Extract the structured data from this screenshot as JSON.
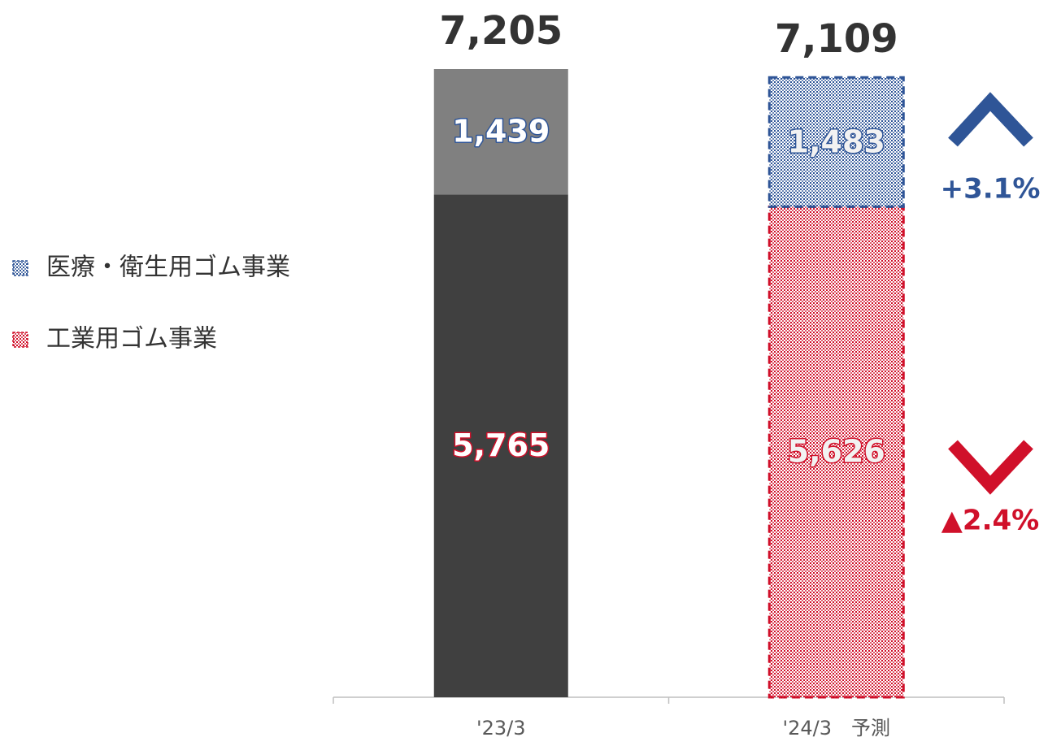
{
  "chart_data": {
    "type": "stacked-bar",
    "categories": [
      "'23/3",
      "'24/3　予測"
    ],
    "styles": [
      "solid",
      "dotted"
    ],
    "series": [
      {
        "name": "工業用ゴム事業",
        "color": "#d0102a",
        "solid_color": "#404040",
        "values": [
          5765,
          5626
        ],
        "value_labels": [
          "5,765",
          "5,626"
        ]
      },
      {
        "name": "医療・衛生用ゴム事業",
        "color": "#2f5597",
        "solid_color": "#808080",
        "values": [
          1439,
          1483
        ],
        "value_labels": [
          "1,439",
          "1,483"
        ]
      }
    ],
    "totals": [
      7205,
      7109
    ],
    "total_labels": [
      "7,205",
      "7,109"
    ],
    "annotations": [
      {
        "text": "+3.1%",
        "color": "#2f5597",
        "direction": "up"
      },
      {
        "text": "▲2.4%",
        "color": "#d0102a",
        "direction": "down"
      }
    ]
  }
}
